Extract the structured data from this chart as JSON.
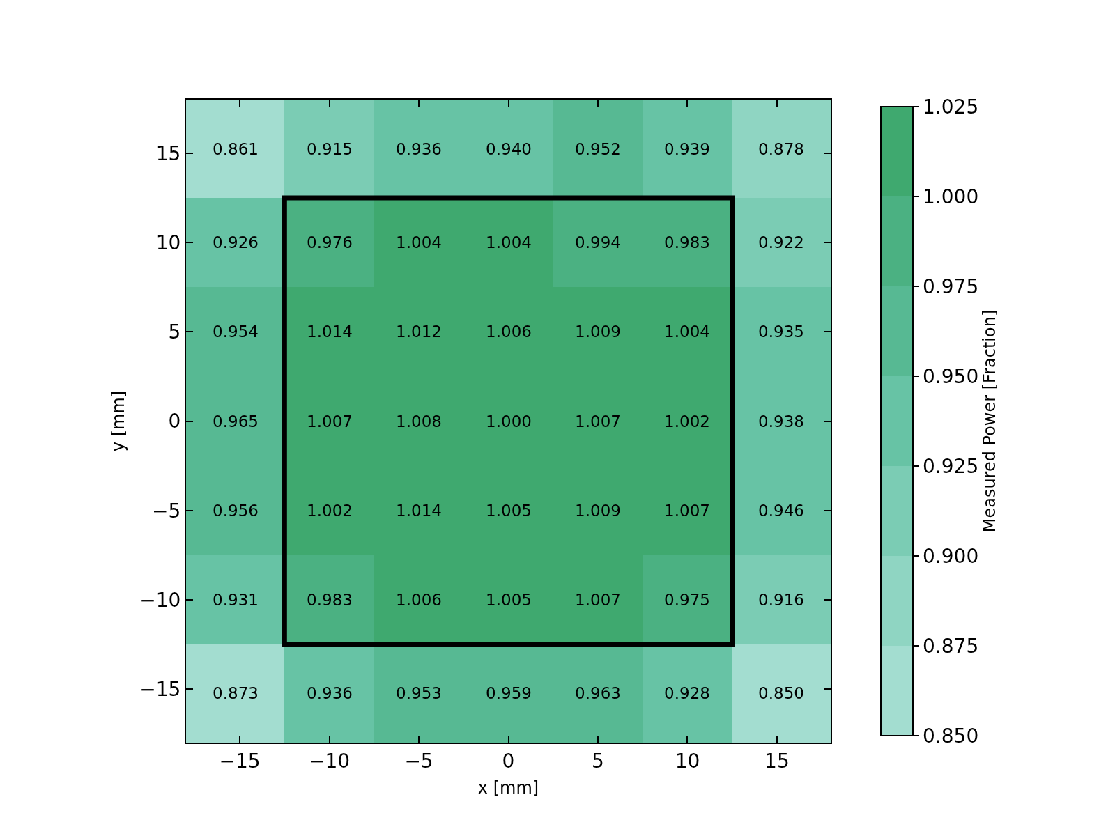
{
  "chart_data": {
    "type": "heatmap",
    "xlabel": "x [mm]",
    "ylabel": "y [mm]",
    "clabel": "Measured Power [Fraction]",
    "x": [
      -15,
      -10,
      -5,
      0,
      5,
      10,
      15
    ],
    "y": [
      15,
      10,
      5,
      0,
      -5,
      -10,
      -15
    ],
    "cells": [
      [
        0.861,
        0.915,
        0.936,
        0.94,
        0.952,
        0.939,
        0.878
      ],
      [
        0.926,
        0.976,
        1.004,
        1.004,
        0.994,
        0.983,
        0.922
      ],
      [
        0.954,
        1.014,
        1.012,
        1.006,
        1.009,
        1.004,
        0.935
      ],
      [
        0.965,
        1.007,
        1.008,
        1.0,
        1.007,
        1.002,
        0.938
      ],
      [
        0.956,
        1.002,
        1.014,
        1.005,
        1.009,
        1.007,
        0.946
      ],
      [
        0.931,
        0.983,
        1.006,
        1.005,
        1.007,
        0.975,
        0.916
      ],
      [
        0.873,
        0.936,
        0.953,
        0.959,
        0.963,
        0.928,
        0.85
      ]
    ],
    "cell_labels": [
      [
        "0.861",
        "0.915",
        "0.936",
        "0.940",
        "0.952",
        "0.939",
        "0.878"
      ],
      [
        "0.926",
        "0.976",
        "1.004",
        "1.004",
        "0.994",
        "0.983",
        "0.922"
      ],
      [
        "0.954",
        "1.014",
        "1.012",
        "1.006",
        "1.009",
        "1.004",
        "0.935"
      ],
      [
        "0.965",
        "1.007",
        "1.008",
        "1.000",
        "1.007",
        "1.002",
        "0.938"
      ],
      [
        "0.956",
        "1.002",
        "1.014",
        "1.005",
        "1.009",
        "1.007",
        "0.946"
      ],
      [
        "0.931",
        "0.983",
        "1.006",
        "1.005",
        "1.007",
        "0.975",
        "0.916"
      ],
      [
        "0.873",
        "0.936",
        "0.953",
        "0.959",
        "0.963",
        "0.928",
        "0.850"
      ]
    ],
    "colors": [
      "#a3ddd0",
      "#8fd5c2",
      "#7bccb4",
      "#67c3a5",
      "#57b993",
      "#4bb182",
      "#3fa96f"
    ],
    "clim": [
      0.85,
      1.025
    ],
    "cticks": [
      {
        "value": 0.85,
        "label": "0.850"
      },
      {
        "value": 0.875,
        "label": "0.875"
      },
      {
        "value": 0.9,
        "label": "0.900"
      },
      {
        "value": 0.925,
        "label": "0.925"
      },
      {
        "value": 0.95,
        "label": "0.950"
      },
      {
        "value": 0.975,
        "label": "0.975"
      },
      {
        "value": 1.0,
        "label": "1.000"
      },
      {
        "value": 1.025,
        "label": "1.025"
      }
    ],
    "xlim": [
      -18,
      18
    ],
    "ylim": [
      -18,
      18
    ],
    "xticks": [
      {
        "value": -15,
        "label": "−15"
      },
      {
        "value": -10,
        "label": "−10"
      },
      {
        "value": -5,
        "label": "−5"
      },
      0,
      5,
      10,
      15
    ],
    "yticks": [
      {
        "value": -15,
        "label": "−15"
      },
      {
        "value": -10,
        "label": "−10"
      },
      {
        "value": -5,
        "label": "−5"
      },
      0,
      5,
      10,
      15
    ]
  }
}
